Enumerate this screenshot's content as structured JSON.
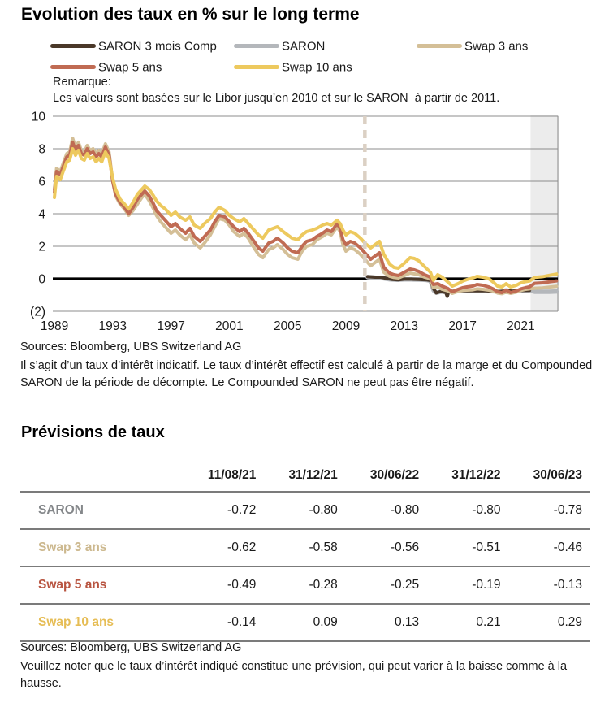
{
  "title": "Evolution des taux en % sur le long terme",
  "legend": [
    {
      "label": "SARON 3 mois Comp",
      "color": "#4a3829"
    },
    {
      "label": "SARON",
      "color": "#b4b7bb"
    },
    {
      "label": "Swap 3 ans",
      "color": "#d4bf97"
    },
    {
      "label": "Swap 5 ans",
      "color": "#c06b53"
    },
    {
      "label": "Swap 10 ans",
      "color": "#edc95e"
    }
  ],
  "remark": {
    "label": "Remarque:",
    "text": "Les valeurs sont basées sur le Libor jusqu’en 2010 et sur le SARON  à partir de 2011."
  },
  "sources_chart": "Sources: Bloomberg, UBS Switzerland AG",
  "disclaimer_chart": "Il s’agit d’un taux d’intérêt indicatif. Le taux d’intérêt effectif est calculé à partir de la marge et du Compounded SARON de la période de décompte. Le Compounded SARON ne peut pas être négatif.",
  "chart_data": {
    "type": "line",
    "title": "Evolution des taux en % sur le long terme",
    "xlabel": "",
    "ylabel": "",
    "ylim": [
      -2,
      10
    ],
    "yticks": [
      10,
      8,
      6,
      4,
      2,
      0,
      -2
    ],
    "ytick_labels": [
      "10",
      "8",
      "6",
      "4",
      "2",
      "0",
      "(2)"
    ],
    "xticks": [
      1989,
      1993,
      1997,
      2001,
      2005,
      2009,
      2013,
      2017,
      2021
    ],
    "xlim": [
      1989,
      2023.6
    ],
    "grid": true,
    "zero_line": true,
    "legend_position": "top",
    "split_year": 2010.3,
    "forecast_band": [
      2021.67,
      2023.62
    ],
    "colors": {
      "band": "#ececec",
      "divider": "#dbd0c4",
      "grid": "#8c8c8c",
      "zero": "#000000",
      "text": "#1a1a1a"
    },
    "x": [
      1989,
      1989.15,
      1989.4,
      1989.6,
      1989.85,
      1990.05,
      1990.25,
      1990.45,
      1990.65,
      1990.85,
      1991.05,
      1991.25,
      1991.45,
      1991.65,
      1991.85,
      1992.05,
      1992.25,
      1992.5,
      1992.75,
      1993,
      1993.2,
      1993.5,
      1993.8,
      1994.1,
      1994.4,
      1994.7,
      1995,
      1995.2,
      1995.5,
      1995.8,
      1996,
      1996.3,
      1996.6,
      1997,
      1997.3,
      1997.6,
      1998,
      1998.3,
      1998.6,
      1999,
      1999.3,
      1999.7,
      2000,
      2000.3,
      2000.7,
      2001,
      2001.3,
      2001.7,
      2002,
      2002.3,
      2002.7,
      2003,
      2003.3,
      2003.7,
      2004,
      2004.3,
      2004.7,
      2005,
      2005.3,
      2005.7,
      2006,
      2006.3,
      2006.7,
      2007,
      2007.4,
      2007.7,
      2008,
      2008.4,
      2008.6,
      2008.8,
      2009,
      2009.3,
      2009.6,
      2010,
      2010.3,
      2010.7,
      2011,
      2011.3,
      2011.6,
      2012,
      2012.3,
      2012.6,
      2013,
      2013.4,
      2013.7,
      2014,
      2014.4,
      2014.8,
      2015,
      2015.3,
      2015.6,
      2016,
      2016.3,
      2016.7,
      2017,
      2017.3,
      2017.7,
      2018,
      2018.4,
      2018.8,
      2019.1,
      2019.4,
      2019.7,
      2020,
      2020.3,
      2020.7,
      2021,
      2021.3,
      2021.6,
      2021.95,
      2022.5,
      2022.95,
      2023.45
    ],
    "series": [
      {
        "name": "SARON 3 mois Comp",
        "color": "#4a3829",
        "width": 4,
        "z": 1,
        "points": [
          [
            2010.5,
            0.13
          ],
          [
            2011,
            0.1
          ],
          [
            2011.4,
            0.1
          ],
          [
            2011.8,
            0.02
          ],
          [
            2012.2,
            -0.04
          ],
          [
            2012.6,
            -0.06
          ],
          [
            2013,
            -0.02
          ],
          [
            2013.5,
            -0.02
          ],
          [
            2014,
            -0.04
          ],
          [
            2014.5,
            -0.06
          ],
          [
            2014.8,
            -0.1
          ],
          [
            2015.02,
            -0.62
          ],
          [
            2015.2,
            -0.87
          ],
          [
            2015.5,
            -0.78
          ],
          [
            2015.85,
            -0.85
          ],
          [
            2015.95,
            -1.08
          ],
          [
            2016.05,
            -0.82
          ],
          [
            2016.4,
            -0.77
          ],
          [
            2016.8,
            -0.74
          ],
          [
            2017.2,
            -0.74
          ],
          [
            2017.6,
            -0.73
          ],
          [
            2018,
            -0.74
          ],
          [
            2018.5,
            -0.73
          ],
          [
            2019,
            -0.76
          ],
          [
            2019.5,
            -0.8
          ],
          [
            2019.8,
            -0.76
          ],
          [
            2020.1,
            -0.7
          ],
          [
            2020.4,
            -0.77
          ],
          [
            2020.8,
            -0.73
          ],
          [
            2021.2,
            -0.72
          ],
          [
            2021.6,
            -0.71
          ]
        ]
      },
      {
        "name": "SARON",
        "color": "#b4b7bb",
        "width": 5.5,
        "z": 0,
        "points": [
          [
            2010.5,
            0.1
          ],
          [
            2011,
            0.07
          ],
          [
            2011.5,
            0.04
          ],
          [
            2012,
            -0.03
          ],
          [
            2012.5,
            -0.06
          ],
          [
            2013,
            -0.04
          ],
          [
            2013.5,
            -0.04
          ],
          [
            2014,
            -0.05
          ],
          [
            2014.5,
            -0.07
          ],
          [
            2014.8,
            -0.12
          ],
          [
            2015.02,
            -0.72
          ],
          [
            2015.2,
            -0.86
          ],
          [
            2015.5,
            -0.8
          ],
          [
            2016,
            -0.78
          ],
          [
            2016.5,
            -0.76
          ],
          [
            2017,
            -0.75
          ],
          [
            2017.5,
            -0.74
          ],
          [
            2018,
            -0.74
          ],
          [
            2018.5,
            -0.74
          ],
          [
            2019,
            -0.76
          ],
          [
            2019.5,
            -0.78
          ],
          [
            2020,
            -0.72
          ],
          [
            2020.4,
            -0.76
          ],
          [
            2020.8,
            -0.74
          ],
          [
            2021.2,
            -0.73
          ],
          [
            2021.6,
            -0.72
          ],
          [
            2021.95,
            -0.8
          ],
          [
            2022.5,
            -0.8
          ],
          [
            2022.95,
            -0.8
          ],
          [
            2023.45,
            -0.78
          ]
        ]
      },
      {
        "name": "Swap 3 ans",
        "color": "#d4bf97",
        "width": 4,
        "z": 2,
        "values": [
          5.5,
          6.8,
          6.6,
          7.1,
          7.7,
          7.8,
          8.65,
          8.1,
          8.4,
          7.9,
          7.8,
          8.2,
          7.9,
          8.0,
          7.7,
          7.9,
          7.7,
          8.3,
          7.8,
          6.0,
          5.1,
          4.6,
          4.3,
          3.9,
          4.2,
          4.6,
          5.0,
          5.2,
          4.8,
          4.3,
          3.9,
          3.5,
          3.2,
          2.8,
          3.0,
          2.7,
          2.4,
          2.7,
          2.2,
          1.9,
          2.2,
          2.7,
          3.2,
          3.7,
          3.6,
          3.3,
          2.9,
          2.6,
          2.8,
          2.5,
          1.9,
          1.5,
          1.3,
          1.8,
          1.9,
          2.1,
          1.8,
          1.5,
          1.3,
          1.2,
          1.7,
          2.0,
          2.1,
          2.4,
          2.6,
          2.8,
          2.7,
          3.2,
          2.9,
          2.1,
          1.7,
          1.9,
          1.8,
          1.5,
          1.2,
          0.8,
          1.0,
          1.2,
          0.4,
          0.15,
          0.08,
          0.05,
          0.2,
          0.35,
          0.3,
          0.25,
          0.1,
          0.0,
          -0.55,
          -0.5,
          -0.65,
          -0.75,
          -0.9,
          -0.78,
          -0.72,
          -0.7,
          -0.68,
          -0.62,
          -0.65,
          -0.7,
          -0.76,
          -0.88,
          -0.92,
          -0.82,
          -0.9,
          -0.82,
          -0.72,
          -0.66,
          -0.62,
          -0.58,
          -0.56,
          -0.51,
          -0.46
        ]
      },
      {
        "name": "Swap 5 ans",
        "color": "#c06b53",
        "width": 4,
        "z": 3,
        "values": [
          5.3,
          6.6,
          6.4,
          6.9,
          7.5,
          7.6,
          8.4,
          7.9,
          8.2,
          7.7,
          7.6,
          8.0,
          7.7,
          7.8,
          7.5,
          7.7,
          7.5,
          8.1,
          7.6,
          6.0,
          5.2,
          4.7,
          4.4,
          4.0,
          4.4,
          4.9,
          5.2,
          5.4,
          5.1,
          4.6,
          4.2,
          3.9,
          3.6,
          3.2,
          3.4,
          3.1,
          2.8,
          3.1,
          2.6,
          2.3,
          2.6,
          3.0,
          3.5,
          3.9,
          3.8,
          3.5,
          3.2,
          2.9,
          3.1,
          2.8,
          2.3,
          1.9,
          1.7,
          2.2,
          2.3,
          2.5,
          2.2,
          1.9,
          1.7,
          1.6,
          2.0,
          2.3,
          2.4,
          2.6,
          2.8,
          3.0,
          2.9,
          3.4,
          3.1,
          2.4,
          2.1,
          2.3,
          2.2,
          1.9,
          1.6,
          1.2,
          1.4,
          1.6,
          0.7,
          0.35,
          0.25,
          0.2,
          0.4,
          0.6,
          0.55,
          0.45,
          0.25,
          0.1,
          -0.35,
          -0.3,
          -0.45,
          -0.6,
          -0.8,
          -0.65,
          -0.55,
          -0.5,
          -0.45,
          -0.35,
          -0.4,
          -0.5,
          -0.62,
          -0.8,
          -0.85,
          -0.7,
          -0.85,
          -0.75,
          -0.62,
          -0.55,
          -0.49,
          -0.28,
          -0.25,
          -0.19,
          -0.13
        ]
      },
      {
        "name": "Swap 10 ans",
        "color": "#edc95e",
        "width": 4,
        "z": 4,
        "values": [
          5.0,
          6.3,
          6.1,
          6.6,
          7.2,
          7.3,
          8.0,
          7.6,
          7.9,
          7.4,
          7.3,
          7.7,
          7.4,
          7.5,
          7.2,
          7.4,
          7.2,
          7.8,
          7.4,
          6.2,
          5.5,
          4.9,
          4.6,
          4.3,
          4.7,
          5.2,
          5.5,
          5.7,
          5.5,
          5.1,
          4.8,
          4.5,
          4.3,
          3.9,
          4.1,
          3.8,
          3.6,
          3.8,
          3.3,
          3.1,
          3.4,
          3.7,
          4.1,
          4.4,
          4.2,
          3.9,
          3.7,
          3.5,
          3.7,
          3.4,
          3.0,
          2.7,
          2.5,
          3.0,
          3.1,
          3.2,
          2.9,
          2.7,
          2.5,
          2.4,
          2.7,
          2.9,
          3.0,
          3.1,
          3.3,
          3.4,
          3.3,
          3.6,
          3.4,
          3.0,
          2.7,
          2.9,
          2.8,
          2.5,
          2.2,
          1.9,
          2.1,
          2.3,
          1.5,
          0.9,
          0.7,
          0.65,
          0.95,
          1.3,
          1.25,
          1.1,
          0.75,
          0.4,
          -0.1,
          0.25,
          0.1,
          -0.2,
          -0.45,
          -0.3,
          -0.15,
          -0.05,
          0.05,
          0.15,
          0.1,
          0.0,
          -0.2,
          -0.45,
          -0.5,
          -0.3,
          -0.5,
          -0.4,
          -0.25,
          -0.18,
          -0.14,
          0.09,
          0.13,
          0.21,
          0.29
        ]
      }
    ]
  },
  "forecast": {
    "title": "Prévisions de taux",
    "columns": [
      "11/08/21",
      "31/12/21",
      "30/06/22",
      "31/12/22",
      "30/06/23"
    ],
    "rows": [
      {
        "label": "SARON",
        "label_color": "#84878a",
        "values": [
          "-0.72",
          "-0.80",
          "-0.80",
          "-0.80",
          "-0.78"
        ]
      },
      {
        "label": "Swap 3 ans",
        "label_color": "#ccb88e",
        "values": [
          "-0.62",
          "-0.58",
          "-0.56",
          "-0.51",
          "-0.46"
        ]
      },
      {
        "label": "Swap 5 ans",
        "label_color": "#b85440",
        "values": [
          "-0.49",
          "-0.28",
          "-0.25",
          "-0.19",
          "-0.13"
        ]
      },
      {
        "label": "Swap 10 ans",
        "label_color": "#e6bd55",
        "values": [
          "-0.14",
          "0.09",
          "0.13",
          "0.21",
          "0.29"
        ]
      }
    ]
  },
  "sources_table": "Sources: Bloomberg, UBS Switzerland AG",
  "disclaimer_table": "Veuillez noter que le taux d’intérêt indiqué constitue une prévision, qui peut varier à la baisse comme à la hausse."
}
